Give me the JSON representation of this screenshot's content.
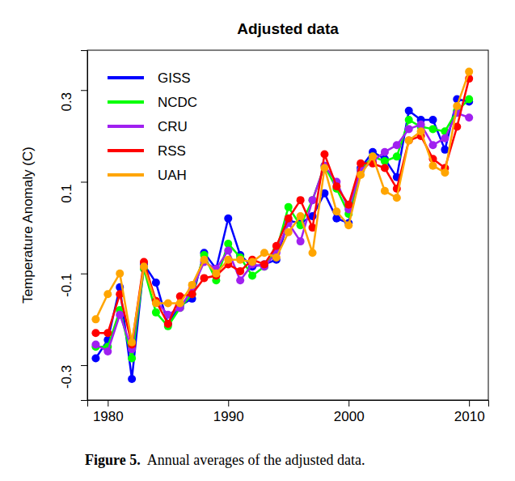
{
  "chart_data": {
    "type": "line",
    "title": "Adjusted data",
    "y_label": "Temperature Anomaly (C)",
    "caption": {
      "label": "Figure 5.",
      "text": "Annual averages of the adjusted data."
    },
    "x": [
      1979,
      1980,
      1981,
      1982,
      1983,
      1984,
      1985,
      1986,
      1987,
      1988,
      1989,
      1990,
      1991,
      1992,
      1993,
      1994,
      1995,
      1996,
      1997,
      1998,
      1999,
      2000,
      2001,
      2002,
      2003,
      2004,
      2005,
      2006,
      2007,
      2008,
      2009,
      2010
    ],
    "series": [
      {
        "name": "GISS",
        "color": "#0000ff",
        "values": [
          -0.285,
          -0.245,
          -0.13,
          -0.33,
          -0.08,
          -0.12,
          -0.21,
          -0.17,
          -0.155,
          -0.055,
          -0.09,
          0.02,
          -0.06,
          -0.085,
          -0.08,
          -0.07,
          0.015,
          0.01,
          0.025,
          0.075,
          0.02,
          0.01,
          0.13,
          0.165,
          0.15,
          0.11,
          0.255,
          0.235,
          0.235,
          0.17,
          0.28,
          0.275
        ]
      },
      {
        "name": "NCDC",
        "color": "#00ff00",
        "values": [
          -0.26,
          -0.26,
          -0.18,
          -0.285,
          -0.09,
          -0.185,
          -0.215,
          -0.175,
          -0.145,
          -0.06,
          -0.115,
          -0.035,
          -0.065,
          -0.105,
          -0.085,
          -0.05,
          0.045,
          0.005,
          0.06,
          0.135,
          0.085,
          0.03,
          0.125,
          0.155,
          0.145,
          0.155,
          0.235,
          0.22,
          0.215,
          0.21,
          0.255,
          0.28
        ]
      },
      {
        "name": "CRU",
        "color": "#a020f0",
        "values": [
          -0.255,
          -0.27,
          -0.19,
          -0.265,
          -0.085,
          -0.16,
          -0.19,
          -0.175,
          -0.135,
          -0.075,
          -0.09,
          -0.05,
          -0.115,
          -0.08,
          -0.085,
          -0.055,
          0.01,
          -0.03,
          0.06,
          0.135,
          0.1,
          0.04,
          0.125,
          0.145,
          0.165,
          0.18,
          0.215,
          0.225,
          0.18,
          0.195,
          0.25,
          0.24
        ]
      },
      {
        "name": "RSS",
        "color": "#ff0000",
        "values": [
          -0.23,
          -0.23,
          -0.145,
          -0.255,
          -0.075,
          -0.16,
          -0.21,
          -0.15,
          -0.145,
          -0.11,
          -0.105,
          -0.08,
          -0.095,
          -0.07,
          -0.08,
          -0.04,
          0.02,
          0.06,
          0.0,
          0.16,
          0.09,
          0.05,
          0.14,
          0.14,
          0.13,
          0.085,
          0.19,
          0.2,
          0.15,
          0.13,
          0.22,
          0.325
        ]
      },
      {
        "name": "UAH",
        "color": "#ffa500",
        "values": [
          -0.2,
          -0.145,
          -0.1,
          -0.25,
          -0.085,
          -0.165,
          -0.165,
          -0.165,
          -0.125,
          -0.07,
          -0.1,
          -0.07,
          -0.07,
          -0.075,
          -0.055,
          -0.065,
          -0.01,
          0.025,
          -0.055,
          0.13,
          0.035,
          0.005,
          0.115,
          0.155,
          0.08,
          0.065,
          0.19,
          0.21,
          0.135,
          0.12,
          0.265,
          0.34
        ]
      }
    ],
    "xlim": [
      1978.3,
      2011.6
    ],
    "xticks": [
      1980,
      1990,
      2000,
      2010
    ],
    "ylim": [
      -0.376,
      0.387
    ],
    "yticks": [
      -0.3,
      -0.1,
      0.1,
      0.3
    ],
    "marker": "circle",
    "legend": "top-left",
    "grid": false
  }
}
